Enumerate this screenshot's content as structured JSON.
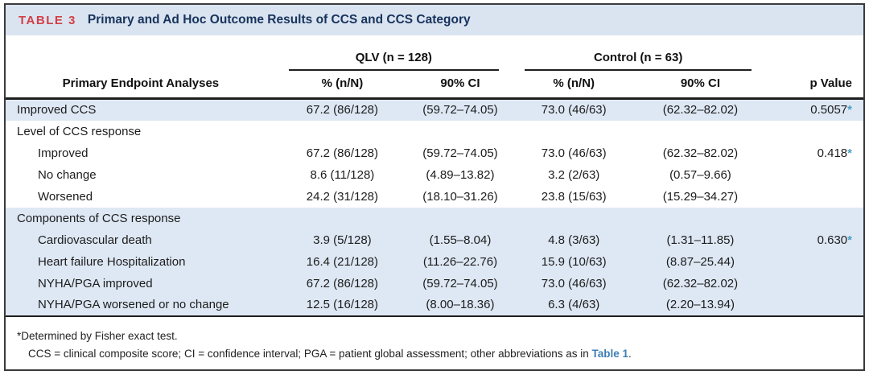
{
  "header": {
    "tag": "TABLE 3",
    "title": "Primary and Ad Hoc Outcome Results of CCS and CCS Category"
  },
  "table": {
    "label_header": "Primary Endpoint Analyses",
    "groups": [
      {
        "label": "QLV (n = 128)"
      },
      {
        "label": "Control (n = 63)"
      }
    ],
    "subheaders": {
      "pct": "% (n/N)",
      "ci": "90% CI"
    },
    "p_header": "p Value",
    "star_symbol": "*",
    "rows": [
      {
        "label": "Improved CCS",
        "indent": false,
        "shaded": true,
        "qlv_pct": "67.2 (86/128)",
        "qlv_ci": "(59.72–74.05)",
        "ctrl_pct": "73.0 (46/63)",
        "ctrl_ci": "(62.32–82.02)",
        "p": "0.5057",
        "p_star": true
      },
      {
        "label": "Level of CCS response",
        "indent": false,
        "shaded": false,
        "qlv_pct": "",
        "qlv_ci": "",
        "ctrl_pct": "",
        "ctrl_ci": "",
        "p": "",
        "p_star": false
      },
      {
        "label": "Improved",
        "indent": true,
        "shaded": false,
        "qlv_pct": "67.2 (86/128)",
        "qlv_ci": "(59.72–74.05)",
        "ctrl_pct": "73.0 (46/63)",
        "ctrl_ci": "(62.32–82.02)",
        "p": "0.418",
        "p_star": true
      },
      {
        "label": "No change",
        "indent": true,
        "shaded": false,
        "qlv_pct": "8.6 (11/128)",
        "qlv_ci": "(4.89–13.82)",
        "ctrl_pct": "3.2 (2/63)",
        "ctrl_ci": "(0.57–9.66)",
        "p": "",
        "p_star": false
      },
      {
        "label": "Worsened",
        "indent": true,
        "shaded": false,
        "qlv_pct": "24.2 (31/128)",
        "qlv_ci": "(18.10–31.26)",
        "ctrl_pct": "23.8 (15/63)",
        "ctrl_ci": "(15.29–34.27)",
        "p": "",
        "p_star": false
      },
      {
        "label": "Components of CCS response",
        "indent": false,
        "shaded": true,
        "qlv_pct": "",
        "qlv_ci": "",
        "ctrl_pct": "",
        "ctrl_ci": "",
        "p": "",
        "p_star": false
      },
      {
        "label": "Cardiovascular death",
        "indent": true,
        "shaded": true,
        "qlv_pct": "3.9 (5/128)",
        "qlv_ci": "(1.55–8.04)",
        "ctrl_pct": "4.8 (3/63)",
        "ctrl_ci": "(1.31–11.85)",
        "p": "0.630",
        "p_star": true
      },
      {
        "label": "Heart failure Hospitalization",
        "indent": true,
        "shaded": true,
        "qlv_pct": "16.4 (21/128)",
        "qlv_ci": "(11.26–22.76)",
        "ctrl_pct": "15.9 (10/63)",
        "ctrl_ci": "(8.87–25.44)",
        "p": "",
        "p_star": false
      },
      {
        "label": "NYHA/PGA improved",
        "indent": true,
        "shaded": true,
        "qlv_pct": "67.2 (86/128)",
        "qlv_ci": "(59.72–74.05)",
        "ctrl_pct": "73.0 (46/63)",
        "ctrl_ci": "(62.32–82.02)",
        "p": "",
        "p_star": false
      },
      {
        "label": "NYHA/PGA worsened or no change",
        "indent": true,
        "shaded": true,
        "qlv_pct": "12.5 (16/128)",
        "qlv_ci": "(8.00–18.36)",
        "ctrl_pct": "6.3 (4/63)",
        "ctrl_ci": "(2.20–13.94)",
        "p": "",
        "p_star": false
      }
    ]
  },
  "footnotes": {
    "line1": "*Determined by Fisher exact test.",
    "line2_prefix": "CCS = clinical composite score; CI = confidence interval; PGA = patient global assessment; other abbreviations as in ",
    "line2_link": "Table 1",
    "line2_suffix": "."
  },
  "colors": {
    "accent_red": "#d23f44",
    "title_navy": "#17335c",
    "title_bar_bg": "#dae4f1",
    "shaded_row_bg": "#dee8f4",
    "star_blue": "#4a9fc4",
    "link_blue": "#3d7fb5"
  }
}
